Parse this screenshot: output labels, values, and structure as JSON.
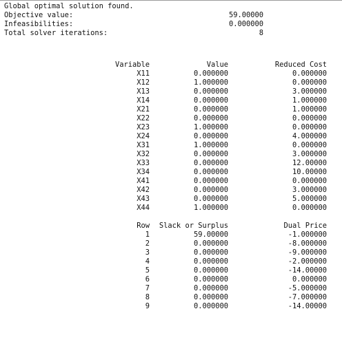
{
  "summary": {
    "status": "Global optimal solution found.",
    "objective_label": "Objective value:",
    "objective_value": "59.00000",
    "infeasibilities_label": "Infeasibilities:",
    "infeasibilities_value": "0.000000",
    "iterations_label": "Total solver iterations:",
    "iterations_value": "8"
  },
  "variables": {
    "headers": {
      "variable": "Variable",
      "value": "Value",
      "reduced_cost": "Reduced Cost"
    },
    "rows": [
      {
        "name": "X11",
        "value": "0.000000",
        "reduced_cost": "0.000000"
      },
      {
        "name": "X12",
        "value": "1.000000",
        "reduced_cost": "0.000000"
      },
      {
        "name": "X13",
        "value": "0.000000",
        "reduced_cost": "3.000000"
      },
      {
        "name": "X14",
        "value": "0.000000",
        "reduced_cost": "1.000000"
      },
      {
        "name": "X21",
        "value": "0.000000",
        "reduced_cost": "1.000000"
      },
      {
        "name": "X22",
        "value": "0.000000",
        "reduced_cost": "0.000000"
      },
      {
        "name": "X23",
        "value": "1.000000",
        "reduced_cost": "0.000000"
      },
      {
        "name": "X24",
        "value": "0.000000",
        "reduced_cost": "4.000000"
      },
      {
        "name": "X31",
        "value": "1.000000",
        "reduced_cost": "0.000000"
      },
      {
        "name": "X32",
        "value": "0.000000",
        "reduced_cost": "3.000000"
      },
      {
        "name": "X33",
        "value": "0.000000",
        "reduced_cost": "12.00000"
      },
      {
        "name": "X34",
        "value": "0.000000",
        "reduced_cost": "10.00000"
      },
      {
        "name": "X41",
        "value": "0.000000",
        "reduced_cost": "0.000000"
      },
      {
        "name": "X42",
        "value": "0.000000",
        "reduced_cost": "3.000000"
      },
      {
        "name": "X43",
        "value": "0.000000",
        "reduced_cost": "5.000000"
      },
      {
        "name": "X44",
        "value": "1.000000",
        "reduced_cost": "0.000000"
      }
    ]
  },
  "constraints": {
    "headers": {
      "row": "Row",
      "slack": "Slack or Surplus",
      "dual_price": "Dual Price"
    },
    "rows": [
      {
        "row": "1",
        "slack": "59.00000",
        "dual_price": "-1.000000"
      },
      {
        "row": "2",
        "slack": "0.000000",
        "dual_price": "-8.000000"
      },
      {
        "row": "3",
        "slack": "0.000000",
        "dual_price": "-9.000000"
      },
      {
        "row": "4",
        "slack": "0.000000",
        "dual_price": "-2.000000"
      },
      {
        "row": "5",
        "slack": "0.000000",
        "dual_price": "-14.00000"
      },
      {
        "row": "6",
        "slack": "0.000000",
        "dual_price": "0.000000"
      },
      {
        "row": "7",
        "slack": "0.000000",
        "dual_price": "-5.000000"
      },
      {
        "row": "8",
        "slack": "0.000000",
        "dual_price": "-7.000000"
      },
      {
        "row": "9",
        "slack": "0.000000",
        "dual_price": "-14.00000"
      }
    ]
  }
}
